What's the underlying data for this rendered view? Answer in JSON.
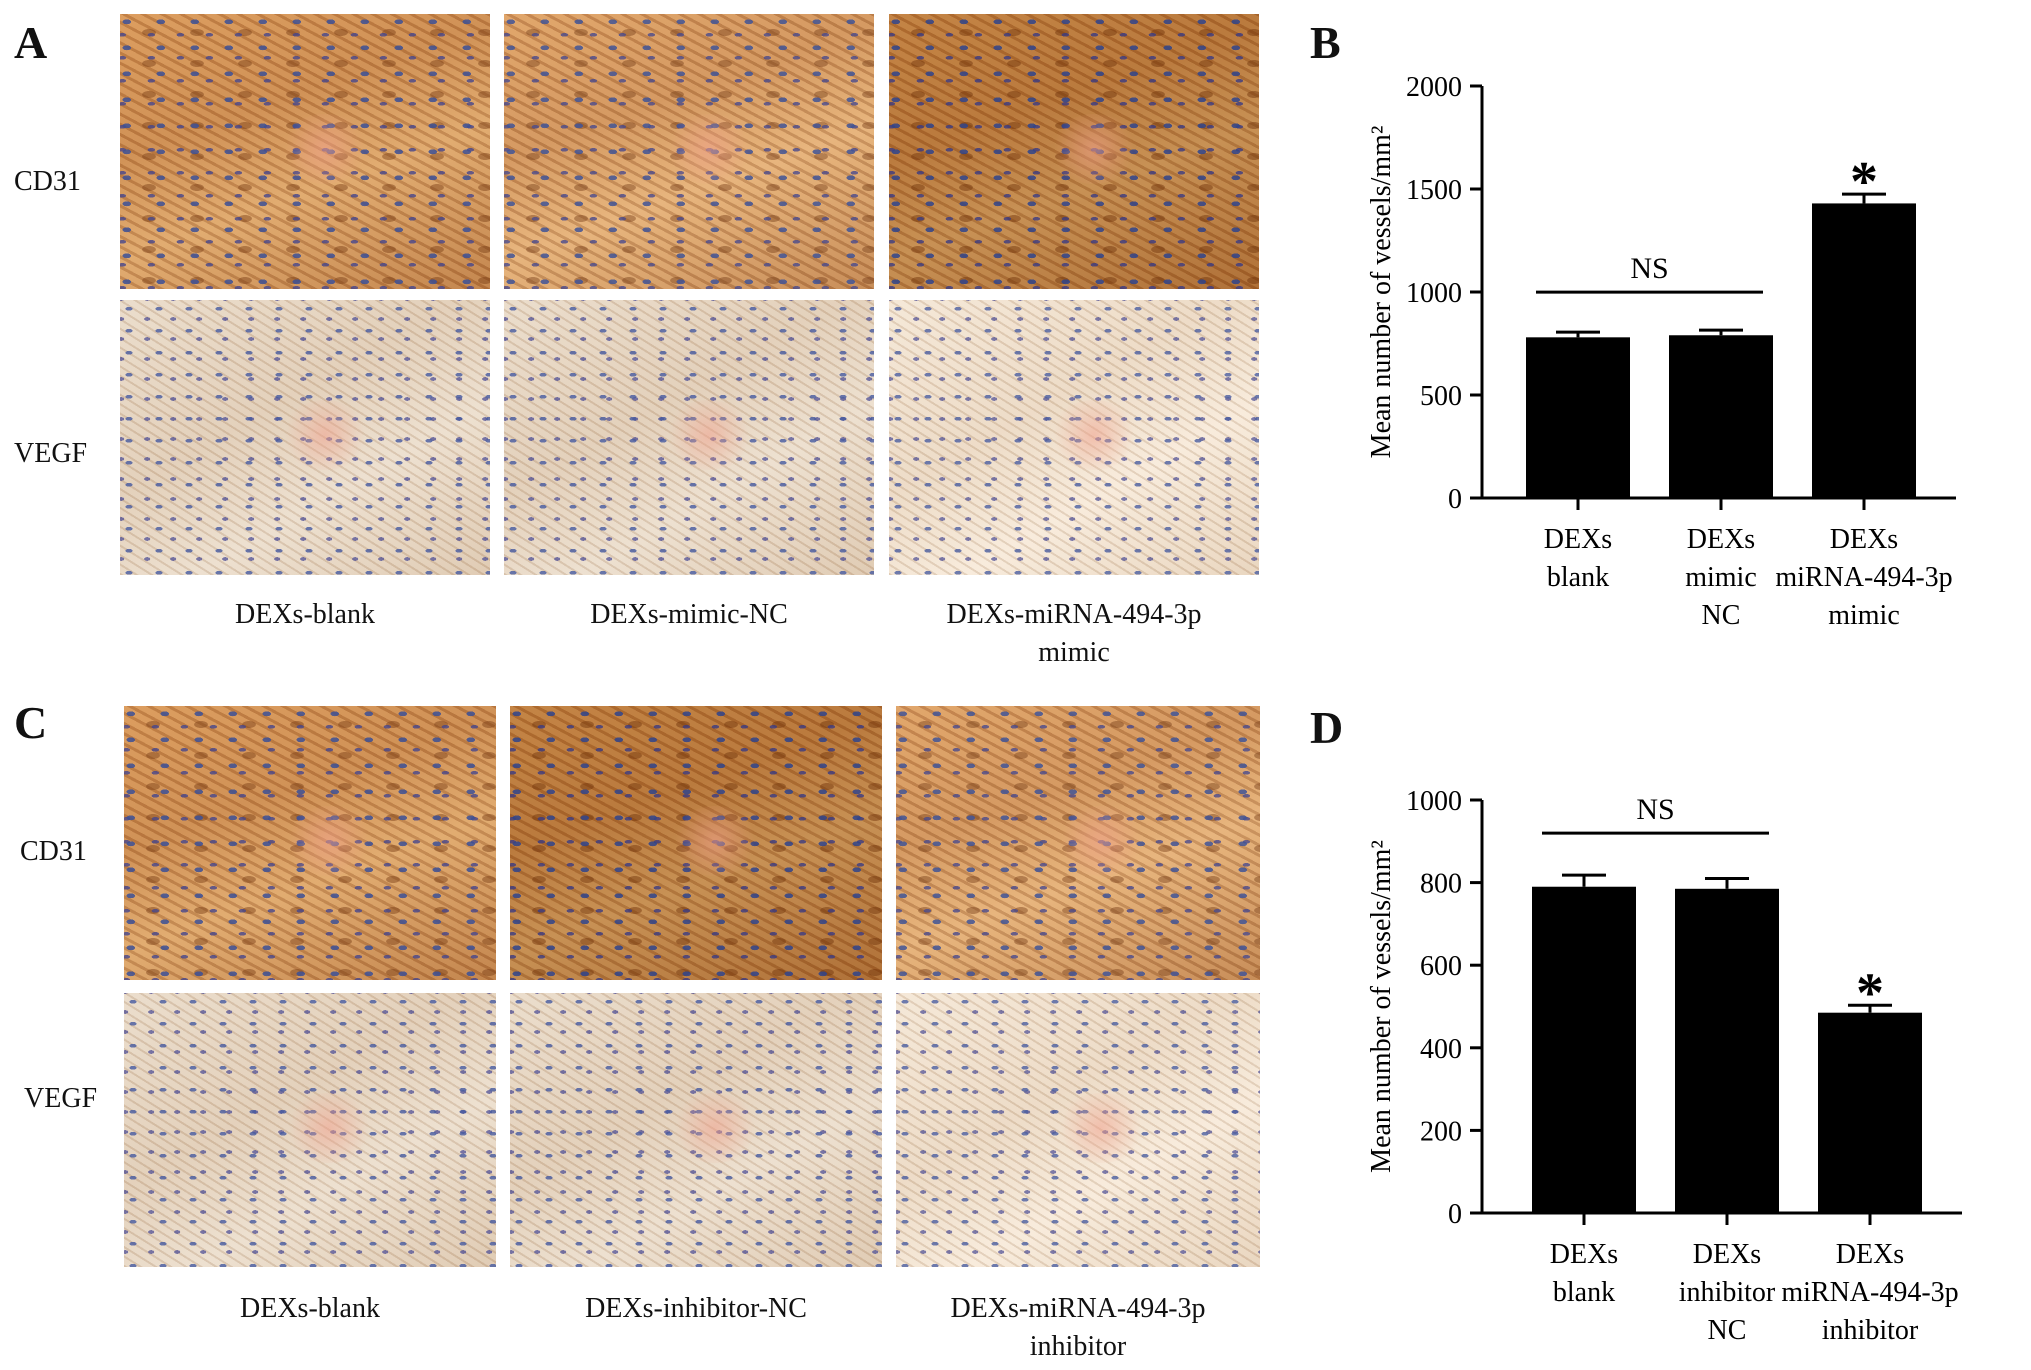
{
  "panels": {
    "A": {
      "letter": "A",
      "row_labels": [
        "CD31",
        "VEGF"
      ],
      "col_labels": [
        "DEXs-blank",
        "DEXs-mimic-NC",
        "DEXs-miRNA-494-3p\nmimic"
      ]
    },
    "B": {
      "letter": "B"
    },
    "C": {
      "letter": "C",
      "row_labels": [
        "CD31",
        "VEGF"
      ],
      "col_labels": [
        "DEXs-blank",
        "DEXs-inhibitor-NC",
        "DEXs-miRNA-494-3p\ninhibitor"
      ]
    },
    "D": {
      "letter": "D"
    }
  },
  "chart_data": [
    {
      "panel": "B",
      "type": "bar",
      "categories": [
        "DEXs\nblank",
        "DEXs\nmimic\nNC",
        "DEXs\nmiRNA-494-3p\nmimic"
      ],
      "values": [
        780,
        790,
        1430
      ],
      "errors": [
        25,
        25,
        45
      ],
      "ylabel": "Mean number of vessels/mm²",
      "ylim": [
        0,
        2000
      ],
      "yticks": [
        0,
        500,
        1000,
        1500,
        2000
      ],
      "annotations": [
        {
          "text": "NS",
          "type": "bracket",
          "from": 0,
          "to": 1
        },
        {
          "text": "*",
          "type": "marker",
          "bar": 2
        }
      ],
      "bar_color": "#000000"
    },
    {
      "panel": "D",
      "type": "bar",
      "categories": [
        "DEXs\nblank",
        "DEXs\ninhibitor\nNC",
        "DEXs\nmiRNA-494-3p\ninhibitor"
      ],
      "values": [
        790,
        785,
        485
      ],
      "errors": [
        28,
        25,
        18
      ],
      "ylabel": "Mean number of vessels/mm²",
      "ylim": [
        0,
        1000
      ],
      "yticks": [
        0,
        200,
        400,
        600,
        800,
        1000
      ],
      "annotations": [
        {
          "text": "NS",
          "type": "bracket",
          "from": 0,
          "to": 1
        },
        {
          "text": "*",
          "type": "marker",
          "bar": 2
        }
      ],
      "bar_color": "#000000"
    }
  ]
}
